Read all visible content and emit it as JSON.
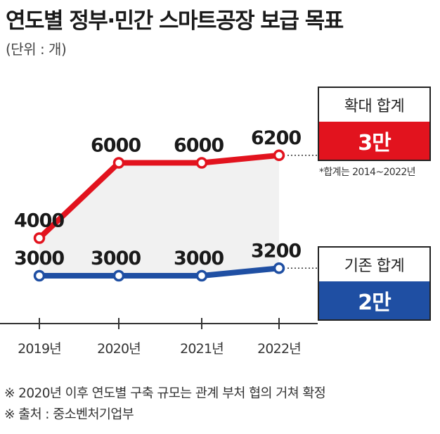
{
  "title": "연도별 정부·민간 스마트공장 보급 목표",
  "unit": "(단위 : 개)",
  "colors": {
    "expanded": "#e2131e",
    "existing": "#1f4fa3",
    "fill": "#f1f1f1"
  },
  "chart_data": {
    "type": "line",
    "x": [
      "2019년",
      "2020년",
      "2021년",
      "2022년"
    ],
    "series": [
      {
        "values": [
          4000,
          6000,
          6000,
          6200
        ],
        "labels": [
          "4000",
          "6000",
          "6000",
          "6200"
        ]
      },
      {
        "values": [
          3000,
          3000,
          3000,
          3200
        ],
        "labels": [
          "3000",
          "3000",
          "3000",
          "3200"
        ]
      }
    ]
  },
  "callouts": {
    "expanded": {
      "label": "확대 합계",
      "value": "3만"
    },
    "existing": {
      "label": "기존 합계",
      "value": "2만"
    },
    "note": "*합계는 2014~2022년"
  },
  "footnotes": [
    "※ 2020년 이후 연도별 구축 규모는 관계 부처 협의 거쳐 확정",
    "※ 출처 : 중소벤처기업부"
  ]
}
